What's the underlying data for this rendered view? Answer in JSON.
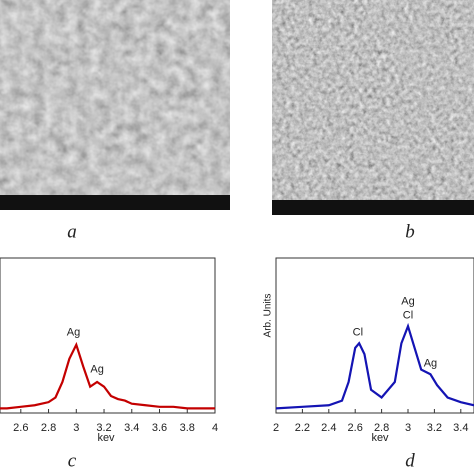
{
  "panels": [
    {
      "label": "a"
    },
    {
      "label": "b"
    }
  ],
  "chart_data": [
    {
      "type": "line",
      "panel": "c",
      "x_label": "kev",
      "x": [
        2.45,
        2.5,
        2.6,
        2.7,
        2.8,
        2.85,
        2.9,
        2.95,
        3.0,
        3.05,
        3.1,
        3.15,
        3.2,
        3.25,
        3.3,
        3.35,
        3.4,
        3.5,
        3.6,
        3.7,
        3.8,
        3.9,
        4.0
      ],
      "series": [
        {
          "color": "#c40000",
          "values": [
            3,
            3,
            4,
            5,
            7,
            10,
            20,
            35,
            44,
            30,
            17,
            20,
            17,
            11,
            9,
            8,
            6,
            5,
            4,
            4,
            3,
            3,
            3
          ]
        }
      ],
      "xlim": [
        2.45,
        4.0
      ],
      "xticks": [
        2.6,
        2.8,
        3.0,
        3.2,
        3.4,
        3.6,
        3.8,
        4.0
      ],
      "ylim": [
        0,
        100
      ],
      "annotations": [
        {
          "text": "Ag",
          "x": 2.98,
          "y": 52
        },
        {
          "text": "Ag",
          "x": 3.15,
          "y": 28
        }
      ]
    },
    {
      "type": "line",
      "panel": "d",
      "x_label": "kev",
      "y_label": "Arb. Units",
      "x": [
        2.0,
        2.2,
        2.4,
        2.5,
        2.55,
        2.6,
        2.63,
        2.67,
        2.72,
        2.8,
        2.9,
        2.95,
        3.0,
        3.05,
        3.1,
        3.17,
        3.22,
        3.3,
        3.4,
        3.5
      ],
      "series": [
        {
          "color": "#1414b4",
          "values": [
            3,
            4,
            5,
            8,
            20,
            42,
            45,
            38,
            15,
            10,
            20,
            45,
            56,
            42,
            28,
            25,
            18,
            10,
            7,
            5
          ]
        }
      ],
      "xlim": [
        2.0,
        3.5
      ],
      "xticks": [
        2.0,
        2.2,
        2.4,
        2.6,
        2.8,
        3.0,
        3.2,
        3.4
      ],
      "ylim": [
        0,
        100
      ],
      "annotations": [
        {
          "text": "Cl",
          "x": 2.62,
          "y": 52
        },
        {
          "text": "Ag",
          "x": 3.0,
          "y": 72
        },
        {
          "text": "Cl",
          "x": 3.0,
          "y": 63
        },
        {
          "text": "Ag",
          "x": 3.17,
          "y": 32
        }
      ]
    }
  ]
}
